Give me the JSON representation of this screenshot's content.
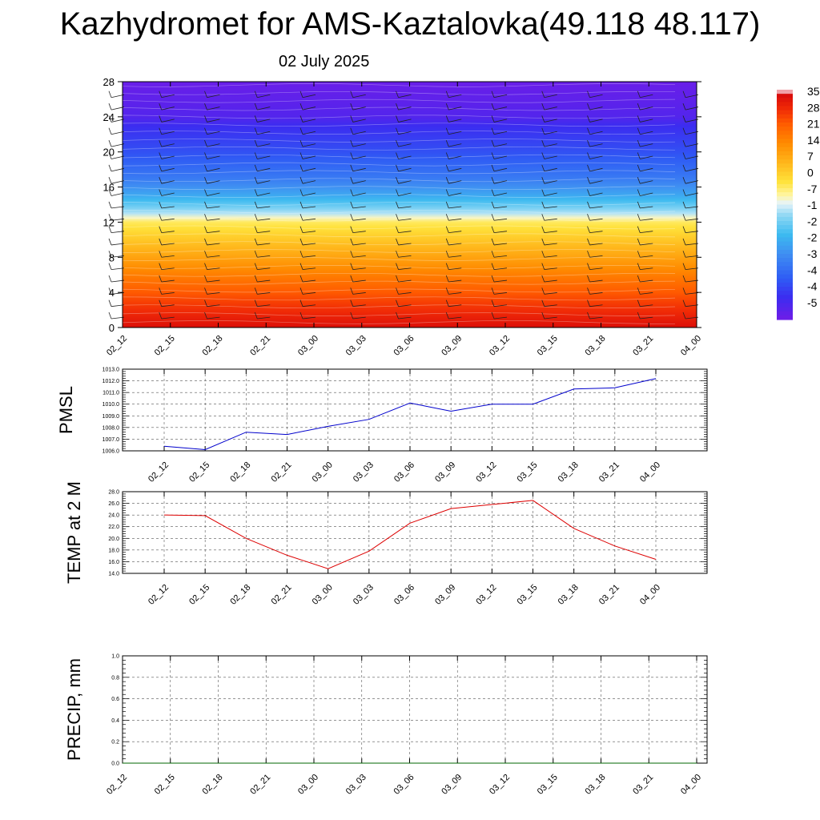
{
  "title": "Kazhydromet for AMS-Kaztalovka(49.118 48.117)",
  "subtitle": "02 July 2025",
  "chart_data": [
    {
      "type": "heatmap",
      "title": "",
      "xlabel": "",
      "ylabel": "",
      "x_ticks": [
        "02_12",
        "02_15",
        "02_18",
        "02_21",
        "03_00",
        "03_03",
        "03_06",
        "03_09",
        "03_12",
        "03_15",
        "03_18",
        "03_21",
        "04_00"
      ],
      "y_ticks": [
        0,
        4,
        8,
        12,
        16,
        20,
        24,
        28
      ],
      "ylim": [
        0,
        28
      ],
      "overlay": "wind barbs",
      "colorbar_labels": [
        "35",
        "28",
        "21",
        "14",
        "7",
        "0",
        "-7",
        "-1",
        "-2",
        "-2",
        "-3",
        "-4",
        "-4",
        "-5"
      ],
      "colors": {
        "low": "#5a10e0",
        "mid_cold": "#3bb0f0",
        "pale": "#d8eef8",
        "warm": "#ffd23a",
        "hot": "#ff6a00",
        "hottest": "#e00a0a"
      },
      "profile": [
        {
          "level": 0,
          "value": 35
        },
        {
          "level": 3,
          "value": 27
        },
        {
          "level": 6,
          "value": 18
        },
        {
          "level": 9,
          "value": 8
        },
        {
          "level": 12,
          "value": -2
        },
        {
          "level": 13,
          "value": -12
        },
        {
          "level": 15,
          "value": -25
        },
        {
          "level": 17,
          "value": -34
        },
        {
          "level": 20,
          "value": -42
        },
        {
          "level": 23,
          "value": -48
        },
        {
          "level": 24,
          "value": -52
        },
        {
          "level": 28,
          "value": -56
        }
      ]
    },
    {
      "type": "line",
      "ylabel": "PMSL",
      "categories": [
        "02_12",
        "02_15",
        "02_18",
        "02_21",
        "03_00",
        "03_03",
        "03_06",
        "03_09",
        "03_12",
        "03_15",
        "03_18",
        "03_21",
        "04_00"
      ],
      "ylim": [
        1006.0,
        1013.0
      ],
      "y_ticks": [
        "1006.0",
        "1007.0",
        "1008.0",
        "1009.0",
        "1010.0",
        "1011.0",
        "1012.0",
        "1013.0"
      ],
      "values": [
        1006.4,
        1006.1,
        1007.6,
        1007.4,
        1008.1,
        1008.7,
        1010.1,
        1009.4,
        1010.0,
        1010.0,
        1011.3,
        1011.4,
        1012.2
      ],
      "color": "#0000cc",
      "grid": true
    },
    {
      "type": "line",
      "ylabel": "TEMP at 2 M",
      "categories": [
        "02_12",
        "02_15",
        "02_18",
        "02_21",
        "03_00",
        "03_03",
        "03_06",
        "03_09",
        "03_12",
        "03_15",
        "03_18",
        "03_21",
        "04_00"
      ],
      "ylim": [
        14.0,
        28.0
      ],
      "y_ticks": [
        "14.0",
        "16.0",
        "18.0",
        "20.0",
        "22.0",
        "24.0",
        "26.0",
        "28.0"
      ],
      "values": [
        24.0,
        23.9,
        20.0,
        17.1,
        14.8,
        17.8,
        22.6,
        25.1,
        25.8,
        26.5,
        21.7,
        18.7,
        16.4
      ],
      "color": "#dd0000",
      "grid": true
    },
    {
      "type": "line",
      "ylabel": "PRECIP, mm",
      "categories": [
        "02_12",
        "02_15",
        "02_18",
        "02_21",
        "03_00",
        "03_03",
        "03_06",
        "03_09",
        "03_12",
        "03_15",
        "03_18",
        "03_21",
        "04_00"
      ],
      "ylim": [
        0.0,
        1.0
      ],
      "y_ticks": [
        "0.0",
        "0.2",
        "0.4",
        "0.6",
        "0.8",
        "1.0"
      ],
      "values": [
        0,
        0,
        0,
        0,
        0,
        0,
        0,
        0,
        0,
        0,
        0,
        0,
        0
      ],
      "color": "#006600",
      "grid": true
    }
  ]
}
